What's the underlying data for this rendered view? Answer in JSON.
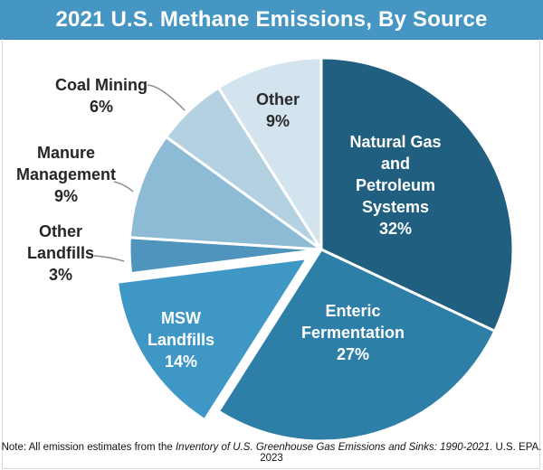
{
  "header": {
    "title": "2021 U.S. Methane Emissions, By Source"
  },
  "note": {
    "prefix": "Note: All emission estimates from the ",
    "italic": "Inventory of U.S. Greenhouse Gas Emissions and Sinks: 1990-2021",
    "suffix": ". U.S. EPA. 2023"
  },
  "colors": {
    "header_bg": "#4596c3",
    "header_text": "#ffffff",
    "panel_border": "#d9d9d9",
    "leader_line": "#8c8c8c",
    "outside_label_text": "#262626",
    "slice_separator": "#ffffff"
  },
  "chart_data": {
    "type": "pie",
    "title": "2021 U.S. Methane Emissions, By Source",
    "unit": "percent",
    "direction": "clockwise",
    "start_angle_deg": 0,
    "categories": [
      "Natural Gas and Petroleum Systems",
      "Enteric Fermentation",
      "MSW Landfills",
      "Other Landfills",
      "Manure Management",
      "Coal Mining",
      "Other"
    ],
    "values": [
      32,
      27,
      14,
      3,
      9,
      6,
      9
    ],
    "exploded_slice": "MSW Landfills",
    "legend": "none",
    "slices": [
      {
        "name": "Natural Gas and Petroleum Systems",
        "pct": 32,
        "color": "#215f80",
        "label_lines": [
          "Natural Gas",
          "and",
          "Petroleum",
          "Systems",
          "32%"
        ],
        "label_position": "inside",
        "label_color": "#ffffff",
        "exploded": false
      },
      {
        "name": "Enteric Fermentation",
        "pct": 27,
        "color": "#2e7fa8",
        "label_lines": [
          "Enteric",
          "Fermentation",
          "27%"
        ],
        "label_position": "inside",
        "label_color": "#ffffff",
        "exploded": false
      },
      {
        "name": "MSW Landfills",
        "pct": 14,
        "color": "#3f97c6",
        "label_lines": [
          "MSW",
          "Landfills",
          "14%"
        ],
        "label_position": "inside",
        "label_color": "#ffffff",
        "exploded": true
      },
      {
        "name": "Other Landfills",
        "pct": 3,
        "color": "#4e94bc",
        "label_lines": [
          "Other",
          "Landfills",
          "3%"
        ],
        "label_position": "outside",
        "label_color": "#262626",
        "exploded": false
      },
      {
        "name": "Manure Management",
        "pct": 9,
        "color": "#8dbad4",
        "label_lines": [
          "Manure",
          "Management",
          "9%"
        ],
        "label_position": "outside",
        "label_color": "#262626",
        "exploded": false
      },
      {
        "name": "Coal Mining",
        "pct": 6,
        "color": "#b4d1e2",
        "label_lines": [
          "Coal Mining",
          "6%"
        ],
        "label_position": "outside",
        "label_color": "#262626",
        "exploded": false
      },
      {
        "name": "Other",
        "pct": 9,
        "color": "#d4e4ee",
        "label_lines": [
          "Other",
          "9%"
        ],
        "label_position": "inside",
        "label_color": "#2b2b2b",
        "exploded": false
      }
    ]
  }
}
